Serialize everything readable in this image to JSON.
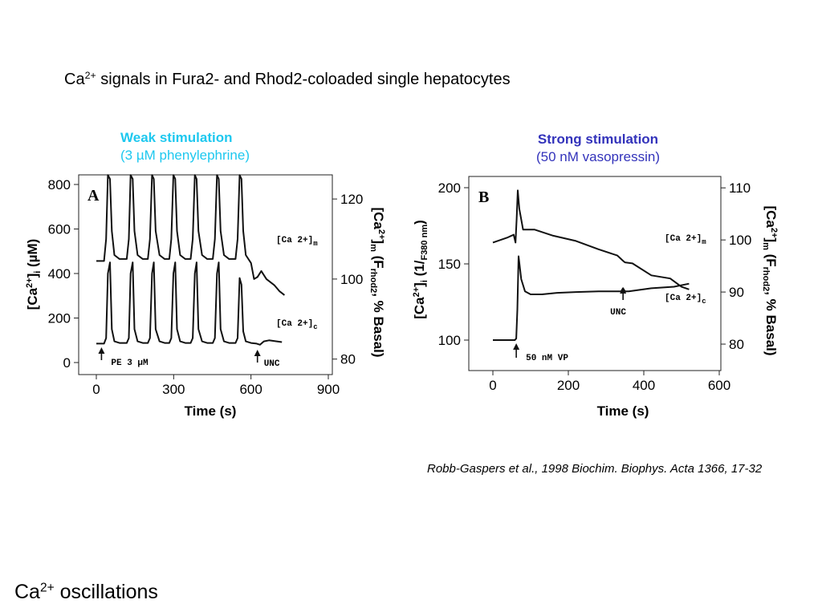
{
  "slide": {
    "title_prefix": "Ca",
    "title_sup": "2+",
    "title_rest": " signals in Fura2- and Rhod2-coloaded single hepatocytes",
    "footer_prefix": "Ca",
    "footer_sup": "2+",
    "footer_rest": " oscillations",
    "citation": "Robb-Gaspers et al., 1998 Biochim. Biophys. Acta 1366, 17-32"
  },
  "colors": {
    "heading_a": "#1ec8ef",
    "heading_b": "#3333bb",
    "trace": "#111111"
  },
  "chart_data": [
    {
      "type": "line",
      "panel_letter": "A",
      "heading": "Weak stimulation",
      "subheading": "(3 µM phenylephrine)",
      "xlabel": "Time (s)",
      "xticks": [
        "0",
        "300",
        "600",
        "900"
      ],
      "xlim": [
        0,
        900
      ],
      "ylabel_left": {
        "base": "[Ca",
        "sup": "2+",
        "mid": "]",
        "sub": "i",
        "rest": " (µM)"
      },
      "yticks_left": [
        "0",
        "200",
        "400",
        "600",
        "800"
      ],
      "ylim_left": [
        0,
        800
      ],
      "ylabel_right": {
        "base": "[Ca",
        "sup": "2+",
        "mid": "]",
        "sub": "m",
        "rest1": " (F",
        "sub2": "rhod2",
        "rest2": ", % Basal)"
      },
      "yticks_right": [
        "80",
        "100",
        "120"
      ],
      "ylim_right": [
        70,
        130
      ],
      "annotations": {
        "stim": "PE 3 µM",
        "stim_time": 20,
        "unc": "UNC",
        "unc_time": 625,
        "label_m": "[Ca 2+]m",
        "label_c": "[Ca 2+]c"
      },
      "series": [
        {
          "name": "[Ca 2+]c",
          "x": [
            0,
            30,
            38,
            45,
            53,
            60,
            70,
            90,
            118,
            126,
            133,
            141,
            148,
            160,
            180,
            200,
            208,
            216,
            223,
            230,
            245,
            265,
            283,
            291,
            299,
            306,
            313,
            325,
            345,
            366,
            374,
            382,
            389,
            396,
            410,
            430,
            452,
            460,
            468,
            475,
            482,
            495,
            515,
            540,
            548,
            556,
            563,
            570,
            580,
            600,
            622,
            635,
            650,
            670,
            700,
            720
          ],
          "y": [
            85,
            85,
            110,
            400,
            450,
            150,
            95,
            88,
            88,
            110,
            400,
            450,
            150,
            95,
            88,
            88,
            110,
            400,
            450,
            150,
            95,
            88,
            88,
            110,
            400,
            450,
            150,
            95,
            88,
            88,
            110,
            400,
            450,
            150,
            95,
            88,
            88,
            110,
            400,
            450,
            150,
            95,
            88,
            88,
            110,
            380,
            350,
            140,
            95,
            88,
            85,
            80,
            95,
            100,
            95,
            92
          ]
        },
        {
          "name": "[Ca 2+]m",
          "x": [
            0,
            30,
            38,
            45,
            53,
            60,
            70,
            90,
            118,
            126,
            133,
            141,
            148,
            160,
            180,
            200,
            208,
            216,
            223,
            230,
            245,
            265,
            283,
            291,
            299,
            306,
            313,
            325,
            345,
            366,
            374,
            382,
            389,
            396,
            410,
            430,
            452,
            460,
            468,
            475,
            482,
            495,
            515,
            540,
            548,
            556,
            563,
            570,
            580,
            600,
            612,
            625,
            640,
            660,
            690,
            710,
            730
          ],
          "y": [
            104.5,
            104.5,
            110,
            126,
            125,
            112,
            106,
            105,
            105,
            110,
            126,
            125,
            112,
            106,
            105,
            105,
            110,
            126,
            125,
            112,
            106,
            105,
            105,
            110,
            126,
            125,
            112,
            106,
            105,
            105,
            110,
            126,
            125,
            112,
            106,
            105,
            105,
            110,
            126,
            125,
            112,
            106,
            105,
            105,
            110,
            126,
            125,
            112,
            106,
            104,
            100,
            100.5,
            102,
            100,
            98.5,
            97,
            96
          ]
        }
      ]
    },
    {
      "type": "line",
      "panel_letter": "B",
      "heading": "Strong stimulation",
      "subheading": "(50 nM vasopressin)",
      "xlabel": "Time (s)",
      "xticks": [
        "0",
        "200",
        "400",
        "600"
      ],
      "xlim": [
        0,
        600
      ],
      "ylabel_left": {
        "base": "[Ca",
        "sup": "2+",
        "mid": "]",
        "sub": "i",
        "rest1": " (1/",
        "sub2": "F380 nm",
        "rest2": ")"
      },
      "yticks_left": [
        "100",
        "150",
        "200"
      ],
      "ylim_left": [
        80,
        200
      ],
      "ylabel_right": {
        "base": "[Ca",
        "sup": "2+",
        "mid": "]",
        "sub": "m",
        "rest1": " (F",
        "sub2": "rhod2",
        "rest2": ", % Basal)"
      },
      "yticks_right": [
        "80",
        "90",
        "100",
        "110"
      ],
      "ylim_right": [
        75,
        110
      ],
      "annotations": {
        "stim": "50 nM VP",
        "stim_time": 62,
        "unc": "UNC",
        "unc_time": 345,
        "label_m": "[Ca 2+]m",
        "label_c": "[Ca 2+]c"
      },
      "series": [
        {
          "name": "[Ca 2+]c",
          "x": [
            0,
            58,
            62,
            65,
            68,
            75,
            85,
            100,
            130,
            170,
            220,
            280,
            330,
            340,
            345,
            350,
            360,
            420,
            480,
            520
          ],
          "y": [
            100,
            100,
            101,
            120,
            155,
            140,
            132,
            130,
            130,
            131,
            131.5,
            132,
            132,
            132,
            134,
            132,
            132,
            134,
            135,
            137
          ]
        },
        {
          "name": "[Ca 2+]m",
          "x": [
            0,
            40,
            55,
            60,
            63,
            66,
            70,
            80,
            110,
            160,
            220,
            280,
            330,
            345,
            350,
            370,
            420,
            470,
            500,
            520
          ],
          "y": [
            99.5,
            100.5,
            101,
            99.5,
            104,
            109.5,
            106,
            102,
            102,
            100.8,
            99.8,
            98.2,
            97,
            96,
            95.7,
            95.5,
            93.2,
            92.6,
            91,
            90.5
          ]
        }
      ]
    }
  ]
}
